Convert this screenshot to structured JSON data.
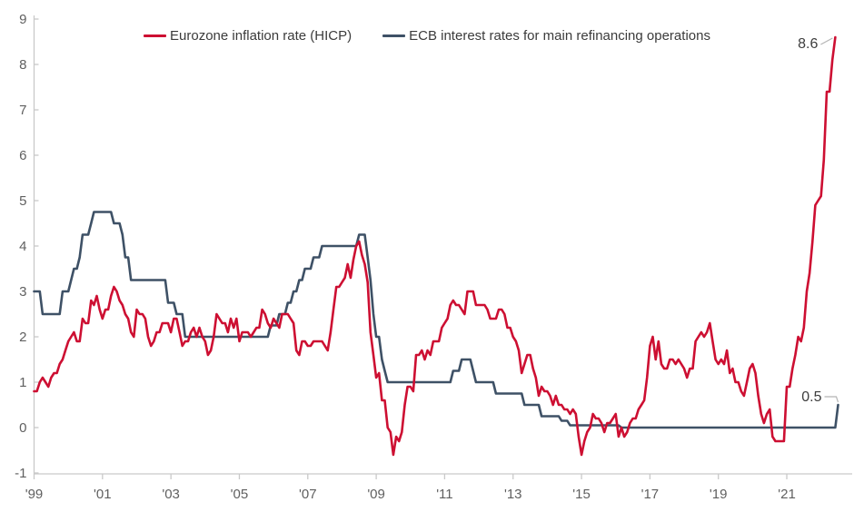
{
  "legend": {
    "items": [
      {
        "label": "Eurozone inflation rate (HICP)",
        "color": "#cd0f32"
      },
      {
        "label": "ECB interest rates for main refinancing operations",
        "color": "#3e5166"
      }
    ]
  },
  "colors": {
    "inflation_line": "#cd0f32",
    "rate_line": "#3e5166",
    "axis": "#c9c9c9",
    "tick_text": "#606060",
    "annotation_text": "#3d3d3d"
  },
  "chart_data": {
    "type": "line",
    "title": "",
    "xlabel": "",
    "ylabel": "",
    "grid": false,
    "legend_position": "top-center",
    "ylim": [
      -1,
      9
    ],
    "y_ticks": [
      -1,
      0,
      1,
      2,
      3,
      4,
      5,
      6,
      7,
      8,
      9
    ],
    "x_ticks": [
      {
        "year": 1999,
        "label": "'99"
      },
      {
        "year": 2001,
        "label": "'01"
      },
      {
        "year": 2003,
        "label": "'03"
      },
      {
        "year": 2005,
        "label": "'05"
      },
      {
        "year": 2007,
        "label": "'07"
      },
      {
        "year": 2009,
        "label": "'09"
      },
      {
        "year": 2011,
        "label": "'11"
      },
      {
        "year": 2013,
        "label": "'13"
      },
      {
        "year": 2015,
        "label": "'15"
      },
      {
        "year": 2017,
        "label": "'17"
      },
      {
        "year": 2019,
        "label": "'19"
      },
      {
        "year": 2021,
        "label": "'21"
      }
    ],
    "frequency": "monthly",
    "series": [
      {
        "id": "inflation",
        "name": "Eurozone inflation rate (HICP)",
        "color": "#cd0f32",
        "start_year": 1999,
        "start_month": 1,
        "values": [
          0.8,
          0.8,
          1.0,
          1.1,
          1.0,
          0.9,
          1.1,
          1.2,
          1.2,
          1.4,
          1.5,
          1.7,
          1.9,
          2.0,
          2.1,
          1.9,
          1.9,
          2.4,
          2.3,
          2.3,
          2.8,
          2.7,
          2.9,
          2.6,
          2.4,
          2.6,
          2.6,
          2.9,
          3.1,
          3.0,
          2.8,
          2.7,
          2.5,
          2.4,
          2.1,
          2.0,
          2.6,
          2.5,
          2.5,
          2.4,
          2.0,
          1.8,
          1.9,
          2.1,
          2.1,
          2.3,
          2.3,
          2.3,
          2.1,
          2.4,
          2.4,
          2.1,
          1.8,
          1.9,
          1.9,
          2.1,
          2.2,
          2.0,
          2.2,
          2.0,
          1.9,
          1.6,
          1.7,
          2.0,
          2.5,
          2.4,
          2.3,
          2.3,
          2.1,
          2.4,
          2.2,
          2.4,
          1.9,
          2.1,
          2.1,
          2.1,
          2.0,
          2.1,
          2.2,
          2.2,
          2.6,
          2.5,
          2.3,
          2.2,
          2.4,
          2.3,
          2.2,
          2.5,
          2.5,
          2.5,
          2.4,
          2.3,
          1.7,
          1.6,
          1.9,
          1.9,
          1.8,
          1.8,
          1.9,
          1.9,
          1.9,
          1.9,
          1.8,
          1.7,
          2.1,
          2.6,
          3.1,
          3.1,
          3.2,
          3.3,
          3.6,
          3.3,
          3.7,
          4.0,
          4.1,
          3.8,
          3.6,
          3.2,
          2.1,
          1.6,
          1.1,
          1.2,
          0.6,
          0.6,
          0.0,
          -0.1,
          -0.6,
          -0.2,
          -0.3,
          -0.1,
          0.5,
          0.9,
          0.9,
          0.8,
          1.6,
          1.6,
          1.7,
          1.5,
          1.7,
          1.6,
          1.9,
          1.9,
          1.9,
          2.2,
          2.3,
          2.4,
          2.7,
          2.8,
          2.7,
          2.7,
          2.6,
          2.5,
          3.0,
          3.0,
          3.0,
          2.7,
          2.7,
          2.7,
          2.7,
          2.6,
          2.4,
          2.4,
          2.4,
          2.6,
          2.6,
          2.5,
          2.2,
          2.2,
          2.0,
          1.9,
          1.7,
          1.2,
          1.4,
          1.6,
          1.6,
          1.3,
          1.1,
          0.7,
          0.9,
          0.8,
          0.8,
          0.7,
          0.5,
          0.7,
          0.5,
          0.5,
          0.4,
          0.4,
          0.3,
          0.4,
          0.3,
          -0.2,
          -0.6,
          -0.3,
          -0.1,
          0.0,
          0.3,
          0.2,
          0.2,
          0.1,
          -0.1,
          0.1,
          0.1,
          0.2,
          0.3,
          -0.2,
          0.0,
          -0.2,
          -0.1,
          0.1,
          0.2,
          0.2,
          0.4,
          0.5,
          0.6,
          1.1,
          1.8,
          2.0,
          1.5,
          1.9,
          1.4,
          1.3,
          1.3,
          1.5,
          1.5,
          1.4,
          1.5,
          1.4,
          1.3,
          1.1,
          1.3,
          1.3,
          1.9,
          2.0,
          2.1,
          2.0,
          2.1,
          2.3,
          1.9,
          1.5,
          1.4,
          1.5,
          1.4,
          1.7,
          1.2,
          1.3,
          1.0,
          1.0,
          0.8,
          0.7,
          1.0,
          1.3,
          1.4,
          1.2,
          0.7,
          0.3,
          0.1,
          0.3,
          0.4,
          -0.2,
          -0.3,
          -0.3,
          -0.3,
          -0.3,
          0.9,
          0.9,
          1.3,
          1.6,
          2.0,
          1.9,
          2.2,
          3.0,
          3.4,
          4.1,
          4.9,
          5.0,
          5.1,
          5.9,
          7.4,
          7.4,
          8.1,
          8.6
        ]
      },
      {
        "id": "rate",
        "name": "ECB interest rates for main refinancing operations",
        "color": "#3e5166",
        "start_year": 1999,
        "start_month": 1,
        "values": [
          3.0,
          3.0,
          3.0,
          2.5,
          2.5,
          2.5,
          2.5,
          2.5,
          2.5,
          2.5,
          3.0,
          3.0,
          3.0,
          3.25,
          3.5,
          3.5,
          3.75,
          4.25,
          4.25,
          4.25,
          4.5,
          4.75,
          4.75,
          4.75,
          4.75,
          4.75,
          4.75,
          4.75,
          4.5,
          4.5,
          4.5,
          4.25,
          3.75,
          3.75,
          3.25,
          3.25,
          3.25,
          3.25,
          3.25,
          3.25,
          3.25,
          3.25,
          3.25,
          3.25,
          3.25,
          3.25,
          3.25,
          2.75,
          2.75,
          2.75,
          2.5,
          2.5,
          2.5,
          2.0,
          2.0,
          2.0,
          2.0,
          2.0,
          2.0,
          2.0,
          2.0,
          2.0,
          2.0,
          2.0,
          2.0,
          2.0,
          2.0,
          2.0,
          2.0,
          2.0,
          2.0,
          2.0,
          2.0,
          2.0,
          2.0,
          2.0,
          2.0,
          2.0,
          2.0,
          2.0,
          2.0,
          2.0,
          2.0,
          2.25,
          2.25,
          2.25,
          2.5,
          2.5,
          2.5,
          2.75,
          2.75,
          3.0,
          3.0,
          3.25,
          3.25,
          3.5,
          3.5,
          3.5,
          3.75,
          3.75,
          3.75,
          4.0,
          4.0,
          4.0,
          4.0,
          4.0,
          4.0,
          4.0,
          4.0,
          4.0,
          4.0,
          4.0,
          4.0,
          4.0,
          4.25,
          4.25,
          4.25,
          3.75,
          3.25,
          2.5,
          2.0,
          2.0,
          1.5,
          1.25,
          1.0,
          1.0,
          1.0,
          1.0,
          1.0,
          1.0,
          1.0,
          1.0,
          1.0,
          1.0,
          1.0,
          1.0,
          1.0,
          1.0,
          1.0,
          1.0,
          1.0,
          1.0,
          1.0,
          1.0,
          1.0,
          1.0,
          1.0,
          1.25,
          1.25,
          1.25,
          1.5,
          1.5,
          1.5,
          1.5,
          1.25,
          1.0,
          1.0,
          1.0,
          1.0,
          1.0,
          1.0,
          1.0,
          0.75,
          0.75,
          0.75,
          0.75,
          0.75,
          0.75,
          0.75,
          0.75,
          0.75,
          0.75,
          0.5,
          0.5,
          0.5,
          0.5,
          0.5,
          0.5,
          0.25,
          0.25,
          0.25,
          0.25,
          0.25,
          0.25,
          0.25,
          0.15,
          0.15,
          0.15,
          0.05,
          0.05,
          0.05,
          0.05,
          0.05,
          0.05,
          0.05,
          0.05,
          0.05,
          0.05,
          0.05,
          0.05,
          0.05,
          0.05,
          0.05,
          0.05,
          0.05,
          0.05,
          0.0,
          0.0,
          0.0,
          0.0,
          0.0,
          0.0,
          0.0,
          0.0,
          0.0,
          0.0,
          0.0,
          0.0,
          0.0,
          0.0,
          0.0,
          0.0,
          0.0,
          0.0,
          0.0,
          0.0,
          0.0,
          0.0,
          0.0,
          0.0,
          0.0,
          0.0,
          0.0,
          0.0,
          0.0,
          0.0,
          0.0,
          0.0,
          0.0,
          0.0,
          0.0,
          0.0,
          0.0,
          0.0,
          0.0,
          0.0,
          0.0,
          0.0,
          0.0,
          0.0,
          0.0,
          0.0,
          0.0,
          0.0,
          0.0,
          0.0,
          0.0,
          0.0,
          0.0,
          0.0,
          0.0,
          0.0,
          0.0,
          0.0,
          0.0,
          0.0,
          0.0,
          0.0,
          0.0,
          0.0,
          0.0,
          0.0,
          0.0,
          0.0,
          0.0,
          0.0,
          0.0,
          0.0,
          0.0,
          0.0,
          0.0,
          0.0,
          0.5
        ]
      }
    ],
    "end_labels": [
      {
        "series": "inflation",
        "text": "8.6"
      },
      {
        "series": "rate",
        "text": "0.5"
      }
    ]
  }
}
